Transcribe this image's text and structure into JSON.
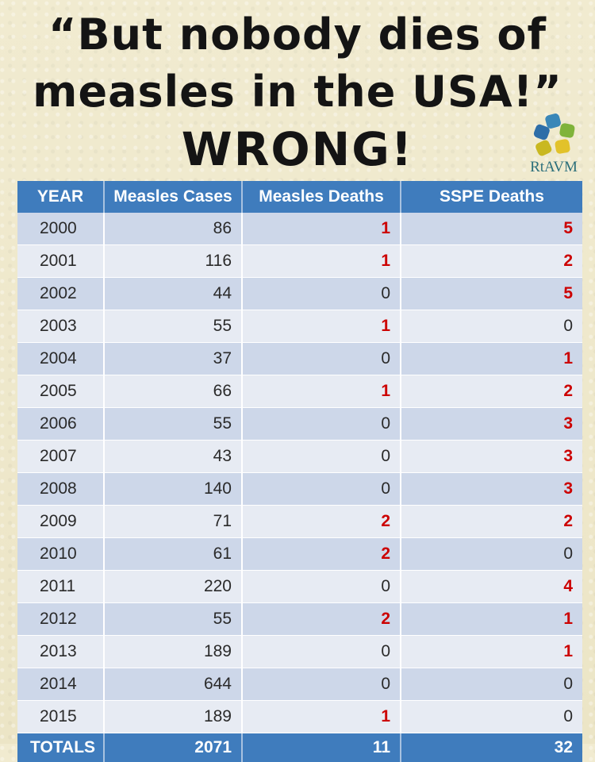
{
  "headline": {
    "line1": "“But nobody dies of",
    "line2": "measles in the USA!”",
    "line3": "WRONG!"
  },
  "logo": {
    "text": "RtAVM",
    "colors": [
      "#3a87b8",
      "#7fb33a",
      "#e2c22a",
      "#2e6ea8",
      "#c9b820"
    ]
  },
  "table": {
    "headers": [
      "YEAR",
      "Measles Cases",
      "Measles Deaths",
      "SSPE  Deaths"
    ],
    "rows": [
      {
        "year": "2000",
        "cases": "86",
        "deaths": "1",
        "sspe": "5"
      },
      {
        "year": "2001",
        "cases": "116",
        "deaths": "1",
        "sspe": "2"
      },
      {
        "year": "2002",
        "cases": "44",
        "deaths": "0",
        "sspe": "5"
      },
      {
        "year": "2003",
        "cases": "55",
        "deaths": "1",
        "sspe": "0"
      },
      {
        "year": "2004",
        "cases": "37",
        "deaths": "0",
        "sspe": "1"
      },
      {
        "year": "2005",
        "cases": "66",
        "deaths": "1",
        "sspe": "2"
      },
      {
        "year": "2006",
        "cases": "55",
        "deaths": "0",
        "sspe": "3"
      },
      {
        "year": "2007",
        "cases": "43",
        "deaths": "0",
        "sspe": "3"
      },
      {
        "year": "2008",
        "cases": "140",
        "deaths": "0",
        "sspe": "3"
      },
      {
        "year": "2009",
        "cases": "71",
        "deaths": "2",
        "sspe": "2"
      },
      {
        "year": "2010",
        "cases": "61",
        "deaths": "2",
        "sspe": "0"
      },
      {
        "year": "2011",
        "cases": "220",
        "deaths": "0",
        "sspe": "4"
      },
      {
        "year": "2012",
        "cases": "55",
        "deaths": "2",
        "sspe": "1"
      },
      {
        "year": "2013",
        "cases": "189",
        "deaths": "0",
        "sspe": "1"
      },
      {
        "year": "2014",
        "cases": "644",
        "deaths": "0",
        "sspe": "0"
      },
      {
        "year": "2015",
        "cases": "189",
        "deaths": "1",
        "sspe": "0"
      }
    ],
    "totals": {
      "label": "TOTALS",
      "cases": "2071",
      "deaths": "11",
      "sspe": "32"
    },
    "highlight_color": "#cc0000"
  }
}
